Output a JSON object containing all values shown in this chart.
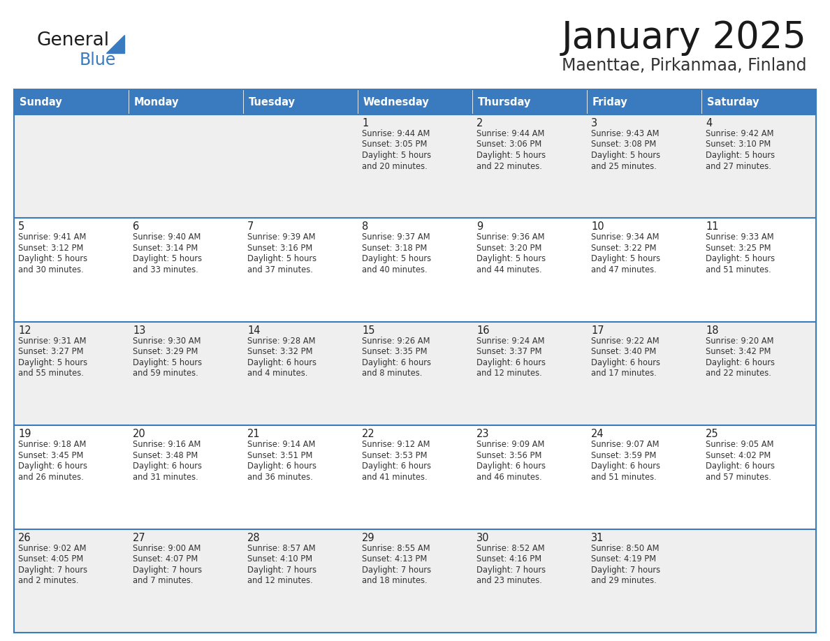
{
  "title": "January 2025",
  "subtitle": "Maenttae, Pirkanmaa, Finland",
  "header_color": "#3a7bbf",
  "header_text_color": "#ffffff",
  "cell_bg_row0": "#efefef",
  "cell_bg_row1": "#ffffff",
  "border_color": "#3a7bbf",
  "text_color": "#333333",
  "day_num_color": "#222222",
  "title_color": "#1a1a1a",
  "subtitle_color": "#333333",
  "day_headers": [
    "Sunday",
    "Monday",
    "Tuesday",
    "Wednesday",
    "Thursday",
    "Friday",
    "Saturday"
  ],
  "calendar": [
    [
      {
        "day": "",
        "sunrise": "",
        "sunset": "",
        "daylight_h": "",
        "daylight_m": ""
      },
      {
        "day": "",
        "sunrise": "",
        "sunset": "",
        "daylight_h": "",
        "daylight_m": ""
      },
      {
        "day": "",
        "sunrise": "",
        "sunset": "",
        "daylight_h": "",
        "daylight_m": ""
      },
      {
        "day": "1",
        "sunrise": "9:44 AM",
        "sunset": "3:05 PM",
        "daylight_h": "5 hours",
        "daylight_m": "and 20 minutes."
      },
      {
        "day": "2",
        "sunrise": "9:44 AM",
        "sunset": "3:06 PM",
        "daylight_h": "5 hours",
        "daylight_m": "and 22 minutes."
      },
      {
        "day": "3",
        "sunrise": "9:43 AM",
        "sunset": "3:08 PM",
        "daylight_h": "5 hours",
        "daylight_m": "and 25 minutes."
      },
      {
        "day": "4",
        "sunrise": "9:42 AM",
        "sunset": "3:10 PM",
        "daylight_h": "5 hours",
        "daylight_m": "and 27 minutes."
      }
    ],
    [
      {
        "day": "5",
        "sunrise": "9:41 AM",
        "sunset": "3:12 PM",
        "daylight_h": "5 hours",
        "daylight_m": "and 30 minutes."
      },
      {
        "day": "6",
        "sunrise": "9:40 AM",
        "sunset": "3:14 PM",
        "daylight_h": "5 hours",
        "daylight_m": "and 33 minutes."
      },
      {
        "day": "7",
        "sunrise": "9:39 AM",
        "sunset": "3:16 PM",
        "daylight_h": "5 hours",
        "daylight_m": "and 37 minutes."
      },
      {
        "day": "8",
        "sunrise": "9:37 AM",
        "sunset": "3:18 PM",
        "daylight_h": "5 hours",
        "daylight_m": "and 40 minutes."
      },
      {
        "day": "9",
        "sunrise": "9:36 AM",
        "sunset": "3:20 PM",
        "daylight_h": "5 hours",
        "daylight_m": "and 44 minutes."
      },
      {
        "day": "10",
        "sunrise": "9:34 AM",
        "sunset": "3:22 PM",
        "daylight_h": "5 hours",
        "daylight_m": "and 47 minutes."
      },
      {
        "day": "11",
        "sunrise": "9:33 AM",
        "sunset": "3:25 PM",
        "daylight_h": "5 hours",
        "daylight_m": "and 51 minutes."
      }
    ],
    [
      {
        "day": "12",
        "sunrise": "9:31 AM",
        "sunset": "3:27 PM",
        "daylight_h": "5 hours",
        "daylight_m": "and 55 minutes."
      },
      {
        "day": "13",
        "sunrise": "9:30 AM",
        "sunset": "3:29 PM",
        "daylight_h": "5 hours",
        "daylight_m": "and 59 minutes."
      },
      {
        "day": "14",
        "sunrise": "9:28 AM",
        "sunset": "3:32 PM",
        "daylight_h": "6 hours",
        "daylight_m": "and 4 minutes."
      },
      {
        "day": "15",
        "sunrise": "9:26 AM",
        "sunset": "3:35 PM",
        "daylight_h": "6 hours",
        "daylight_m": "and 8 minutes."
      },
      {
        "day": "16",
        "sunrise": "9:24 AM",
        "sunset": "3:37 PM",
        "daylight_h": "6 hours",
        "daylight_m": "and 12 minutes."
      },
      {
        "day": "17",
        "sunrise": "9:22 AM",
        "sunset": "3:40 PM",
        "daylight_h": "6 hours",
        "daylight_m": "and 17 minutes."
      },
      {
        "day": "18",
        "sunrise": "9:20 AM",
        "sunset": "3:42 PM",
        "daylight_h": "6 hours",
        "daylight_m": "and 22 minutes."
      }
    ],
    [
      {
        "day": "19",
        "sunrise": "9:18 AM",
        "sunset": "3:45 PM",
        "daylight_h": "6 hours",
        "daylight_m": "and 26 minutes."
      },
      {
        "day": "20",
        "sunrise": "9:16 AM",
        "sunset": "3:48 PM",
        "daylight_h": "6 hours",
        "daylight_m": "and 31 minutes."
      },
      {
        "day": "21",
        "sunrise": "9:14 AM",
        "sunset": "3:51 PM",
        "daylight_h": "6 hours",
        "daylight_m": "and 36 minutes."
      },
      {
        "day": "22",
        "sunrise": "9:12 AM",
        "sunset": "3:53 PM",
        "daylight_h": "6 hours",
        "daylight_m": "and 41 minutes."
      },
      {
        "day": "23",
        "sunrise": "9:09 AM",
        "sunset": "3:56 PM",
        "daylight_h": "6 hours",
        "daylight_m": "and 46 minutes."
      },
      {
        "day": "24",
        "sunrise": "9:07 AM",
        "sunset": "3:59 PM",
        "daylight_h": "6 hours",
        "daylight_m": "and 51 minutes."
      },
      {
        "day": "25",
        "sunrise": "9:05 AM",
        "sunset": "4:02 PM",
        "daylight_h": "6 hours",
        "daylight_m": "and 57 minutes."
      }
    ],
    [
      {
        "day": "26",
        "sunrise": "9:02 AM",
        "sunset": "4:05 PM",
        "daylight_h": "7 hours",
        "daylight_m": "and 2 minutes."
      },
      {
        "day": "27",
        "sunrise": "9:00 AM",
        "sunset": "4:07 PM",
        "daylight_h": "7 hours",
        "daylight_m": "and 7 minutes."
      },
      {
        "day": "28",
        "sunrise": "8:57 AM",
        "sunset": "4:10 PM",
        "daylight_h": "7 hours",
        "daylight_m": "and 12 minutes."
      },
      {
        "day": "29",
        "sunrise": "8:55 AM",
        "sunset": "4:13 PM",
        "daylight_h": "7 hours",
        "daylight_m": "and 18 minutes."
      },
      {
        "day": "30",
        "sunrise": "8:52 AM",
        "sunset": "4:16 PM",
        "daylight_h": "7 hours",
        "daylight_m": "and 23 minutes."
      },
      {
        "day": "31",
        "sunrise": "8:50 AM",
        "sunset": "4:19 PM",
        "daylight_h": "7 hours",
        "daylight_m": "and 29 minutes."
      },
      {
        "day": "",
        "sunrise": "",
        "sunset": "",
        "daylight_h": "",
        "daylight_m": ""
      }
    ]
  ]
}
